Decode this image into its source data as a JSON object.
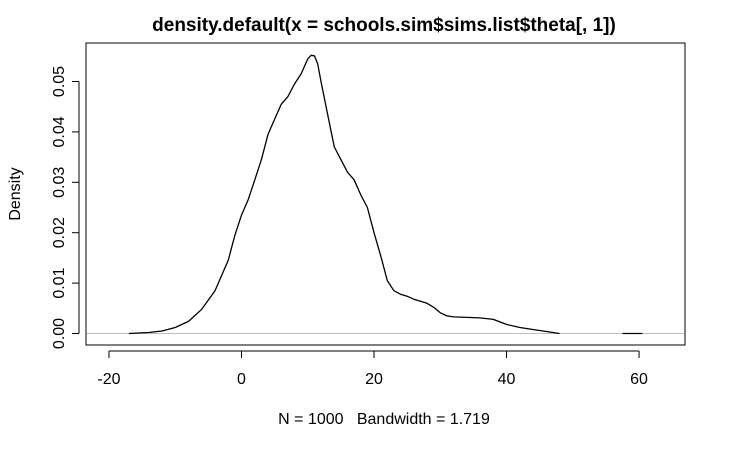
{
  "chart_data": {
    "type": "line",
    "title": "density.default(x = schools.sim$sims.list$theta[, 1])",
    "xlabel": "N = 1000   Bandwidth = 1.719",
    "ylabel": "Density",
    "xlim": [
      -20,
      67
    ],
    "ylim": [
      0,
      0.055
    ],
    "xticks": [
      -20,
      0,
      20,
      40,
      60
    ],
    "xtick_labels": [
      "-20",
      "0",
      "20",
      "40",
      "60"
    ],
    "yticks": [
      0.0,
      0.01,
      0.02,
      0.03,
      0.04,
      0.05
    ],
    "ytick_labels": [
      "0.00",
      "0.01",
      "0.02",
      "0.03",
      "0.04",
      "0.05"
    ],
    "baseline": 0,
    "grid": false,
    "colors": {
      "line": "#000000",
      "baseline": "#bebebe",
      "frame": "#000000"
    },
    "series": [
      {
        "x": [
          -17,
          -14,
          -12,
          -10,
          -8,
          -6,
          -4,
          -2,
          -1,
          0,
          1,
          2,
          3,
          4,
          5,
          6,
          7,
          8,
          9,
          10,
          10.5,
          11,
          11.5,
          12,
          13,
          14,
          15,
          16,
          17,
          18,
          19,
          20,
          21,
          22,
          23,
          24,
          25,
          26,
          27,
          28,
          29,
          30,
          31,
          32,
          34,
          36,
          38,
          40,
          42,
          44,
          46,
          48
        ],
        "y": [
          0.0,
          0.0002,
          0.0005,
          0.0012,
          0.0024,
          0.0048,
          0.0085,
          0.0145,
          0.0195,
          0.0235,
          0.0265,
          0.0305,
          0.0345,
          0.0395,
          0.0425,
          0.0455,
          0.047,
          0.0495,
          0.0515,
          0.0545,
          0.0552,
          0.0551,
          0.0535,
          0.05,
          0.0435,
          0.037,
          0.0345,
          0.032,
          0.0305,
          0.0275,
          0.025,
          0.02,
          0.0155,
          0.0105,
          0.0085,
          0.0078,
          0.0074,
          0.0068,
          0.0064,
          0.006,
          0.0052,
          0.0041,
          0.0035,
          0.0033,
          0.0032,
          0.0031,
          0.0028,
          0.0018,
          0.0012,
          0.0008,
          0.0004,
          0.0
        ]
      },
      {
        "x": [
          57.5,
          60.5
        ],
        "y": [
          0.0,
          0.0
        ]
      }
    ]
  }
}
